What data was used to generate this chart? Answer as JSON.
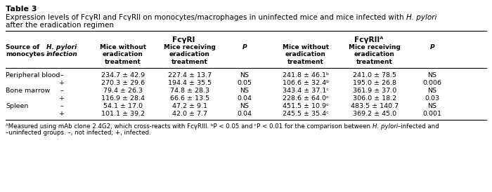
{
  "table_number": "Table 3",
  "title_main": "Expression levels of FcγRI and FcγRII on monocytes/macrophages in uninfected mice and mice infected with ",
  "title_italic": "H. pylori",
  "title_line2": "after the eradication regimen",
  "col_group1": "FcγRI",
  "col_group2": "FcγRIIᴬ",
  "col_headers": [
    "Source of\nmonocytes",
    "H. pylori\ninfection",
    "Mice without\neradication\ntreatment",
    "Mice receiving\neradication\ntreatment",
    "P",
    "Mice without\neradication\ntreatment",
    "Mice receiving\neradication\ntreatment",
    "P"
  ],
  "rows": [
    [
      "Peripheral blood",
      "–",
      "234.7 ± 42.9",
      "227.4 ± 13.7",
      "NS",
      "241.8 ± 46.1ᵇ",
      "241.0 ± 78.5",
      "NS"
    ],
    [
      "",
      "+",
      "270.3 ± 29.6",
      "194.4 ± 35.5",
      "0.05",
      "106.6 ± 32.4ᵇ",
      "195.0 ± 26.8",
      "0.006"
    ],
    [
      "Bone marrow",
      "–",
      "79.4 ± 26.3",
      "74.8 ± 28.3",
      "NS",
      "343.4 ± 37.1ᶜ",
      "361.9 ± 37.0",
      "NS"
    ],
    [
      "",
      "+",
      "116.9 ± 28.4",
      "66.6 ± 13.5",
      "0.04",
      "228.6 ± 64.0ᶜ",
      "306.0 ± 18.2",
      "0.03"
    ],
    [
      "Spleen",
      "–",
      "54.1 ± 17.0",
      "47.2 ± 9.1",
      "NS",
      "451.5 ± 10.9ᶜ",
      "483.5 ± 140.7",
      "NS"
    ],
    [
      "",
      "+",
      "101.1 ± 39.2",
      "42.0 ± 7.7",
      "0.04",
      "245.5 ± 35.4ᶜ",
      "369.2 ± 45.0",
      "0.001"
    ]
  ],
  "footnote_parts": [
    [
      {
        "ᴬMeasured using mAb clone 2.4G2, which cross-reacts with FcγRIII. ᵇP < 0.05 and ᶜP < 0.01 for the comparison between ": "normal"
      },
      {
        "H. pylori": "italic"
      },
      {
        "–infected and": "normal"
      }
    ],
    [
      {
        "–uninfected groups. –, not infected; +, infected.": "normal"
      }
    ]
  ],
  "bg_color": "#ffffff",
  "text_color": "#000000"
}
